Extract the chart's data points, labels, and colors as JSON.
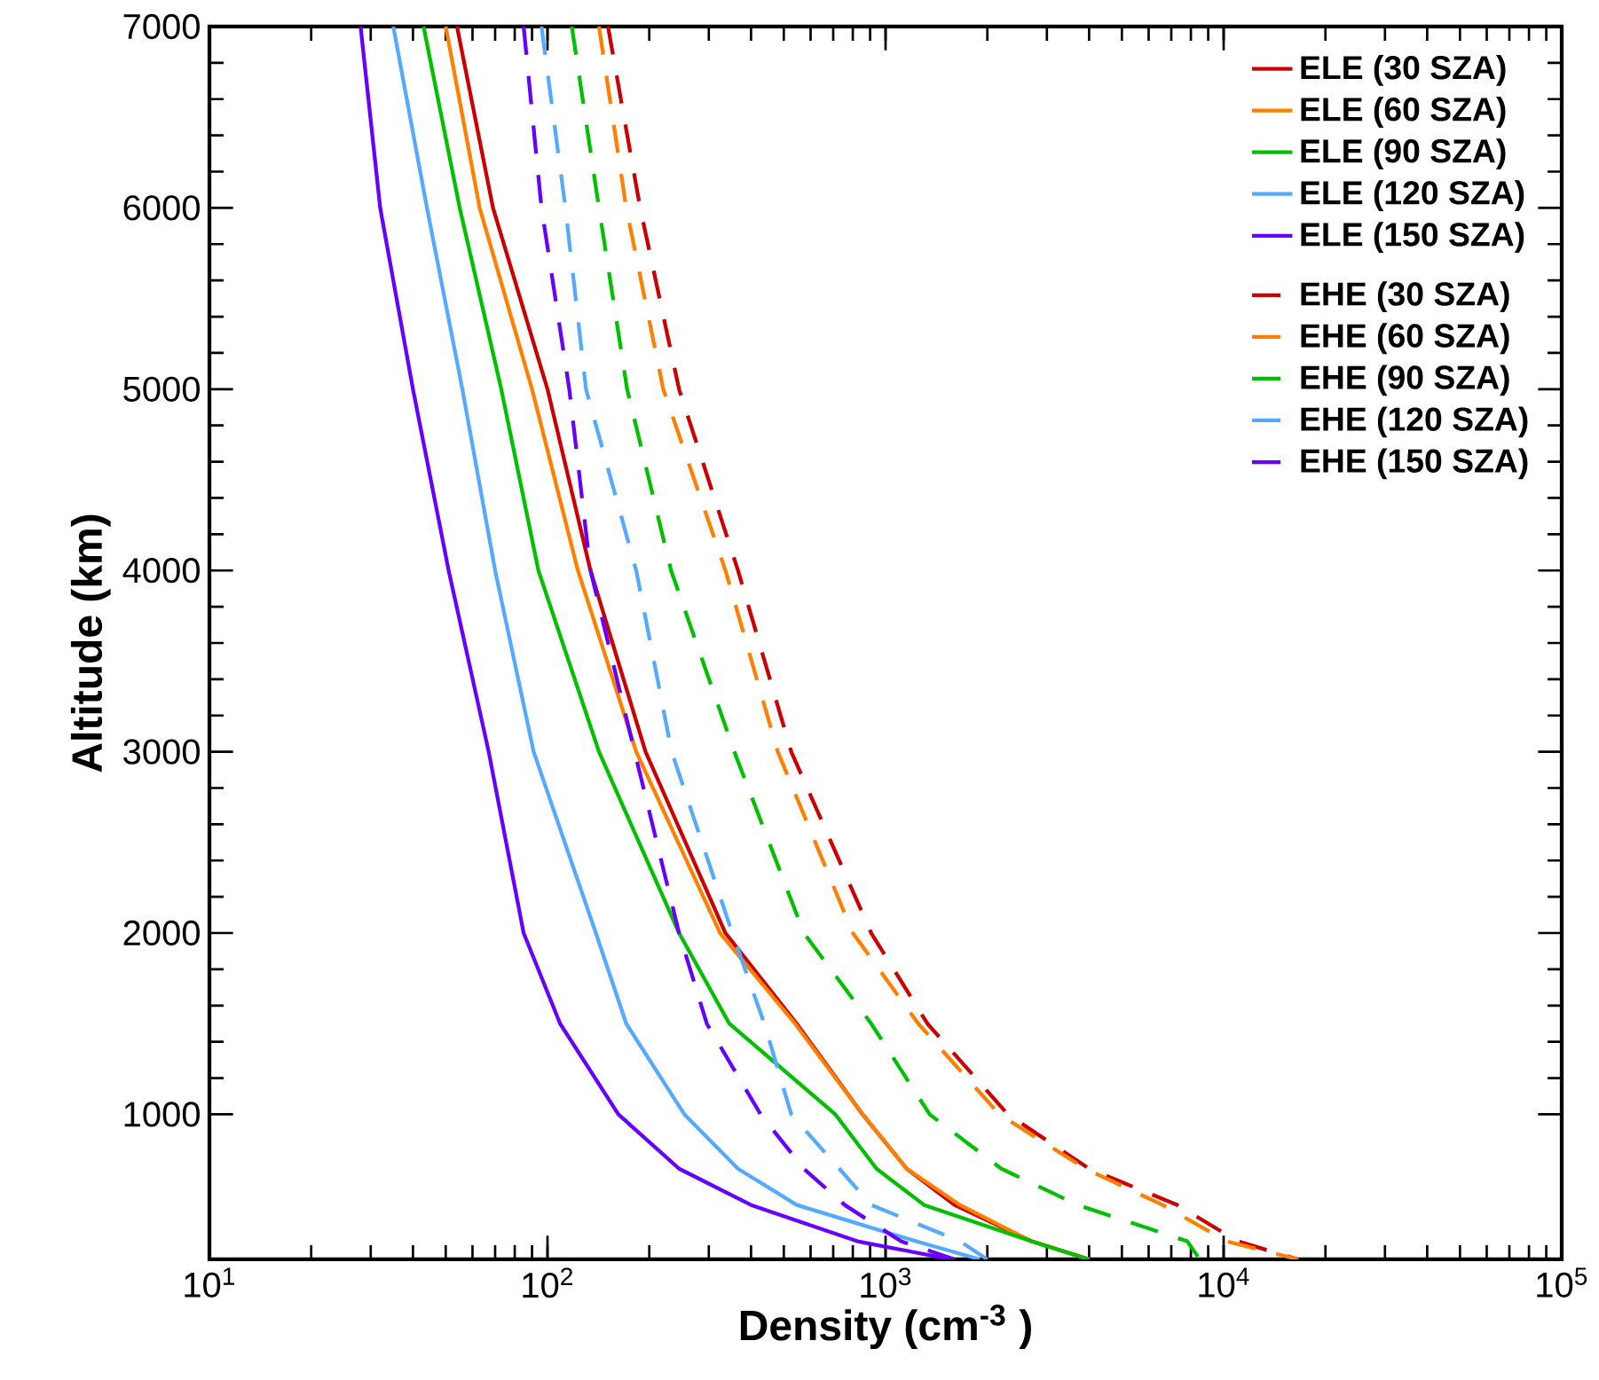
{
  "chart_data": {
    "type": "line",
    "xlabel": "Density (cm$^{-3}$ )",
    "ylabel": "Altitude (km)",
    "log": "x",
    "xlim": [
      10,
      100000
    ],
    "ylim": [
      200,
      7000
    ],
    "xticks": [
      {
        "value": 10,
        "label": "10$^{1}$"
      },
      {
        "value": 100,
        "label": "10$^{2}$"
      },
      {
        "value": 1000,
        "label": "10$^{3}$"
      },
      {
        "value": 10000,
        "label": "10$^{4}$"
      },
      {
        "value": 100000,
        "label": "10$^{5}$"
      }
    ],
    "yticks": [
      1000,
      2000,
      3000,
      4000,
      5000,
      6000,
      7000
    ],
    "grid": false,
    "legend": "top right",
    "series": [
      {
        "name": "ELE (30 SZA)",
        "color": "#cc0000",
        "line_style": "solid",
        "x": [
          54,
          69,
          100,
          134,
          195,
          336,
          546,
          855,
          1155,
          1600,
          2700,
          4000
        ],
        "values": [
          7000,
          6000,
          5000,
          4000,
          3000,
          2000,
          1500,
          1000,
          700,
          500,
          300,
          200
        ]
      },
      {
        "name": "ELE (60 SZA)",
        "color": "#ff8000",
        "line_style": "solid",
        "x": [
          50,
          63,
          90,
          123,
          183,
          324,
          540,
          855,
          1155,
          1660,
          2700,
          4000
        ],
        "values": [
          7000,
          6000,
          5000,
          4000,
          3000,
          2000,
          1500,
          1000,
          700,
          500,
          300,
          200
        ]
      },
      {
        "name": "ELE (90 SZA)",
        "color": "#00c000",
        "line_style": "solid",
        "x": [
          43,
          55,
          73,
          94,
          142,
          245,
          345,
          710,
          940,
          1300,
          2700,
          4000
        ],
        "values": [
          7000,
          6000,
          5000,
          4000,
          3000,
          2000,
          1500,
          1000,
          700,
          500,
          300,
          200
        ]
      },
      {
        "name": "ELE (120 SZA)",
        "color": "#55aaff",
        "line_style": "solid",
        "x": [
          35,
          44,
          56,
          70,
          91,
          139,
          171,
          254,
          366,
          546,
          1230,
          1900
        ],
        "values": [
          7000,
          6000,
          5000,
          4000,
          3000,
          2000,
          1500,
          1000,
          700,
          500,
          300,
          200
        ]
      },
      {
        "name": "ELE (150 SZA)",
        "color": "#6600ff",
        "line_style": "solid",
        "x": [
          28,
          32,
          40,
          51,
          67,
          85,
          109,
          162,
          245,
          400,
          825,
          1560
        ],
        "values": [
          7000,
          6000,
          5000,
          4000,
          3000,
          2000,
          1500,
          1000,
          700,
          500,
          300,
          200
        ]
      },
      {
        "name": "EHE (30 SZA)",
        "color": "#cc0000",
        "line_style": "dashed",
        "x": [
          151,
          188,
          245,
          366,
          526,
          907,
          1330,
          2300,
          4000,
          7300,
          11000,
          16600
        ],
        "values": [
          7000,
          6000,
          5000,
          4000,
          3000,
          2000,
          1500,
          1000,
          700,
          500,
          300,
          200
        ]
      },
      {
        "name": "EHE (60 SZA)",
        "color": "#ff8000",
        "line_style": "dashed",
        "x": [
          142,
          171,
          220,
          336,
          480,
          800,
          1250,
          2170,
          3900,
          6600,
          10200,
          16600
        ],
        "values": [
          7000,
          6000,
          5000,
          4000,
          3000,
          2000,
          1500,
          1000,
          700,
          500,
          300,
          200
        ]
      },
      {
        "name": "EHE (90 SZA)",
        "color": "#00c000",
        "line_style": "dashed",
        "x": [
          118,
          142,
          172,
          232,
          357,
          573,
          907,
          1350,
          2200,
          3700,
          7800,
          8500
        ],
        "values": [
          7000,
          6000,
          5000,
          4000,
          3000,
          2000,
          1500,
          1000,
          700,
          500,
          300,
          200
        ]
      },
      {
        "name": "EHE (120 SZA)",
        "color": "#55aaff",
        "line_style": "dashed",
        "x": [
          96,
          113,
          130,
          183,
          233,
          352,
          438,
          526,
          730,
          907,
          1660,
          2000
        ],
        "values": [
          7000,
          6000,
          5000,
          4000,
          3000,
          2000,
          1500,
          1000,
          700,
          500,
          300,
          200
        ]
      },
      {
        "name": "EHE (150 SZA)",
        "color": "#6600ff",
        "line_style": "dashed",
        "x": [
          85,
          96,
          116,
          134,
          181,
          245,
          296,
          427,
          573,
          757,
          1110,
          1600
        ],
        "values": [
          7000,
          6000,
          5000,
          4000,
          3000,
          2000,
          1500,
          1000,
          700,
          500,
          300,
          200
        ]
      }
    ]
  }
}
